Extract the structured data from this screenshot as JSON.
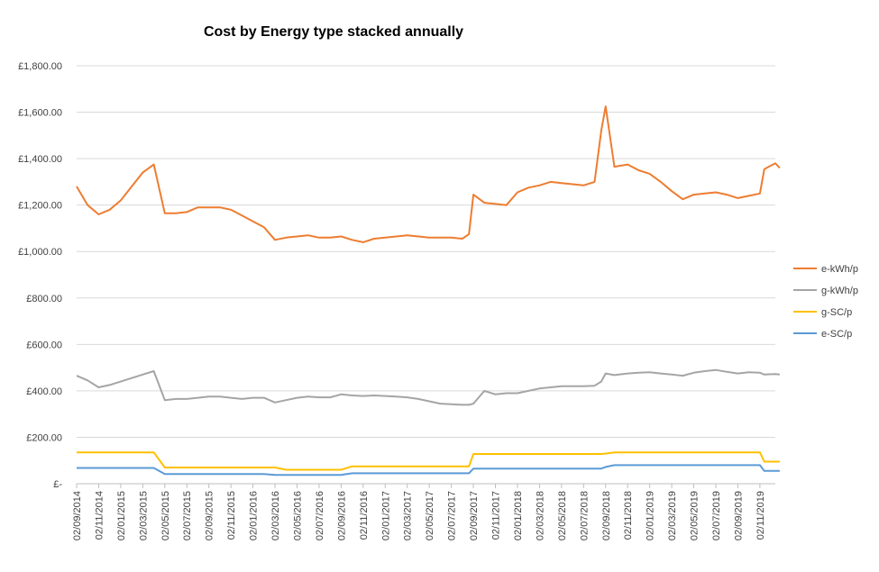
{
  "chart_data": {
    "type": "line",
    "title": "Cost by Energy type stacked annually",
    "xlabel": "",
    "ylabel": "",
    "ylim": [
      0,
      1800
    ],
    "y_ticks": [
      {
        "value": 0,
        "label": "£-"
      },
      {
        "value": 200,
        "label": "£200.00"
      },
      {
        "value": 400,
        "label": "£400.00"
      },
      {
        "value": 600,
        "label": "£600.00"
      },
      {
        "value": 800,
        "label": "£800.00"
      },
      {
        "value": 1000,
        "label": "£1,000.00"
      },
      {
        "value": 1200,
        "label": "£1,200.00"
      },
      {
        "value": 1400,
        "label": "£1,400.00"
      },
      {
        "value": 1600,
        "label": "£1,600.00"
      },
      {
        "value": 1800,
        "label": "£1,800.00"
      }
    ],
    "x_tick_labels": [
      "02/09/2014",
      "02/11/2014",
      "02/01/2015",
      "02/03/2015",
      "02/05/2015",
      "02/07/2015",
      "02/09/2015",
      "02/11/2015",
      "02/01/2016",
      "02/03/2016",
      "02/05/2016",
      "02/07/2016",
      "02/09/2016",
      "02/11/2016",
      "02/01/2017",
      "02/03/2017",
      "02/05/2017",
      "02/07/2017",
      "02/09/2017",
      "02/11/2017",
      "02/01/2018",
      "02/03/2018",
      "02/05/2018",
      "02/07/2018",
      "02/09/2018",
      "02/11/2018",
      "02/01/2019",
      "02/03/2019",
      "02/05/2019",
      "02/07/2019",
      "02/09/2019",
      "02/11/2019"
    ],
    "grid": true,
    "legend_position": "right",
    "series": [
      {
        "name": "e-kWh/p",
        "color": "#ED7D31",
        "x": [
          0,
          0.5,
          1,
          1.5,
          2,
          2.5,
          3,
          3.5,
          4,
          4.5,
          5,
          5.5,
          6,
          6.5,
          7,
          7.5,
          8,
          8.5,
          9,
          9.5,
          10,
          10.5,
          11,
          11.5,
          12,
          12.5,
          13,
          13.5,
          14,
          14.5,
          15,
          15.5,
          16,
          16.5,
          17,
          17.5,
          17.8,
          18,
          18.5,
          19,
          19.5,
          20,
          20.5,
          21,
          21.5,
          22,
          22.5,
          23,
          23.5,
          23.8,
          24,
          24.4,
          25,
          25.5,
          26,
          26.5,
          27,
          27.5,
          28,
          28.5,
          29,
          29.5,
          30,
          30.5,
          31,
          31.2,
          31.7,
          31.9
        ],
        "values": [
          1280,
          1200,
          1160,
          1180,
          1220,
          1280,
          1340,
          1375,
          1165,
          1165,
          1170,
          1190,
          1190,
          1190,
          1180,
          1155,
          1130,
          1105,
          1050,
          1060,
          1065,
          1070,
          1060,
          1060,
          1065,
          1050,
          1040,
          1055,
          1060,
          1065,
          1070,
          1065,
          1060,
          1060,
          1060,
          1055,
          1075,
          1245,
          1210,
          1205,
          1200,
          1255,
          1275,
          1285,
          1300,
          1295,
          1290,
          1285,
          1300,
          1520,
          1625,
          1365,
          1375,
          1350,
          1335,
          1300,
          1260,
          1225,
          1245,
          1250,
          1255,
          1245,
          1230,
          1240,
          1250,
          1355,
          1380,
          1360
        ]
      },
      {
        "name": "g-kWh/p",
        "color": "#A5A5A5",
        "x": [
          0,
          0.5,
          1,
          1.5,
          2,
          2.5,
          3,
          3.5,
          4,
          4.5,
          5,
          5.5,
          6,
          6.5,
          7,
          7.5,
          8,
          8.5,
          9,
          9.5,
          10,
          10.5,
          11,
          11.5,
          12,
          12.5,
          13,
          13.5,
          14,
          14.5,
          15,
          15.5,
          16,
          16.5,
          17,
          17.5,
          17.8,
          18,
          18.5,
          19,
          19.5,
          20,
          20.5,
          21,
          21.5,
          22,
          22.5,
          23,
          23.5,
          23.8,
          24,
          24.4,
          25,
          25.5,
          26,
          26.5,
          27,
          27.5,
          28,
          28.5,
          29,
          29.5,
          30,
          30.5,
          31,
          31.2,
          31.7,
          31.9
        ],
        "values": [
          465,
          445,
          415,
          425,
          440,
          455,
          470,
          485,
          360,
          365,
          365,
          370,
          375,
          375,
          370,
          365,
          370,
          370,
          350,
          360,
          370,
          375,
          372,
          372,
          385,
          380,
          378,
          380,
          378,
          375,
          372,
          365,
          355,
          345,
          342,
          340,
          340,
          345,
          400,
          385,
          390,
          390,
          400,
          410,
          415,
          420,
          420,
          420,
          422,
          440,
          475,
          468,
          475,
          478,
          480,
          475,
          470,
          465,
          478,
          485,
          490,
          482,
          475,
          480,
          478,
          470,
          472,
          470
        ]
      },
      {
        "name": "g-SC/p",
        "color": "#FFC000",
        "x": [
          0,
          3.5,
          4,
          9,
          9.5,
          12,
          12.5,
          17.8,
          18,
          23.8,
          24,
          24.4,
          31,
          31.2,
          31.9
        ],
        "values": [
          135,
          135,
          70,
          70,
          60,
          60,
          75,
          75,
          128,
          128,
          130,
          135,
          135,
          95,
          95
        ]
      },
      {
        "name": "e-SC/p",
        "color": "#5B9BD5",
        "x": [
          0,
          3.5,
          4,
          8.5,
          9,
          12,
          12.5,
          17.8,
          18,
          23.8,
          24,
          24.4,
          31,
          31.2,
          31.9
        ],
        "values": [
          68,
          68,
          42,
          42,
          38,
          38,
          45,
          45,
          65,
          65,
          72,
          80,
          80,
          55,
          55
        ]
      }
    ]
  }
}
